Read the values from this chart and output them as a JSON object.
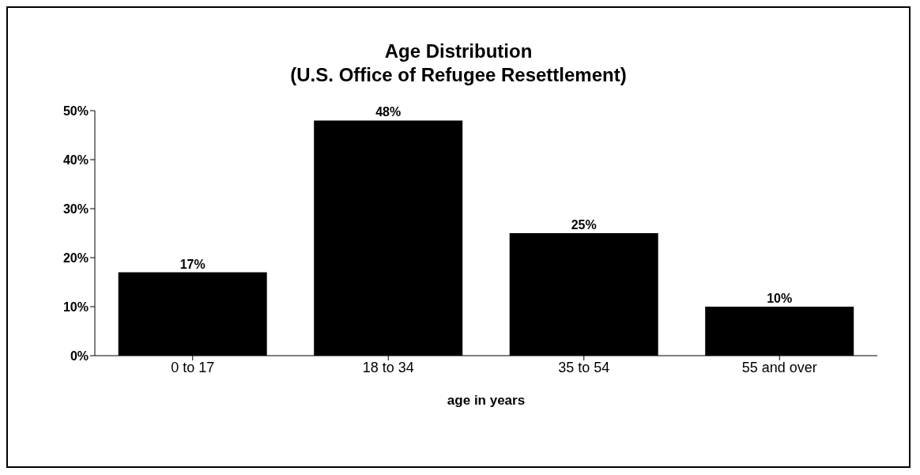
{
  "chart_data": {
    "type": "bar",
    "title": "Age Distribution\n(U.S. Office of Refugee Resettlement)",
    "xlabel": "age in years",
    "categories": [
      "0 to 17",
      "18 to 34",
      "35 to 54",
      "55 and over"
    ],
    "values": [
      17,
      48,
      25,
      10
    ],
    "color": "#000000",
    "data_labels": true,
    "value_labels": [
      "17%",
      "48%",
      "25%",
      "10%"
    ],
    "ylim": [
      0,
      50
    ],
    "yticks": [
      {
        "value": 0,
        "label": "0%"
      },
      {
        "value": 10,
        "label": "10%"
      },
      {
        "value": 20,
        "label": "20%"
      },
      {
        "value": 30,
        "label": "30%"
      },
      {
        "value": 40,
        "label": "40%"
      },
      {
        "value": 50,
        "label": "50%"
      }
    ],
    "grid": false,
    "legend": false
  }
}
